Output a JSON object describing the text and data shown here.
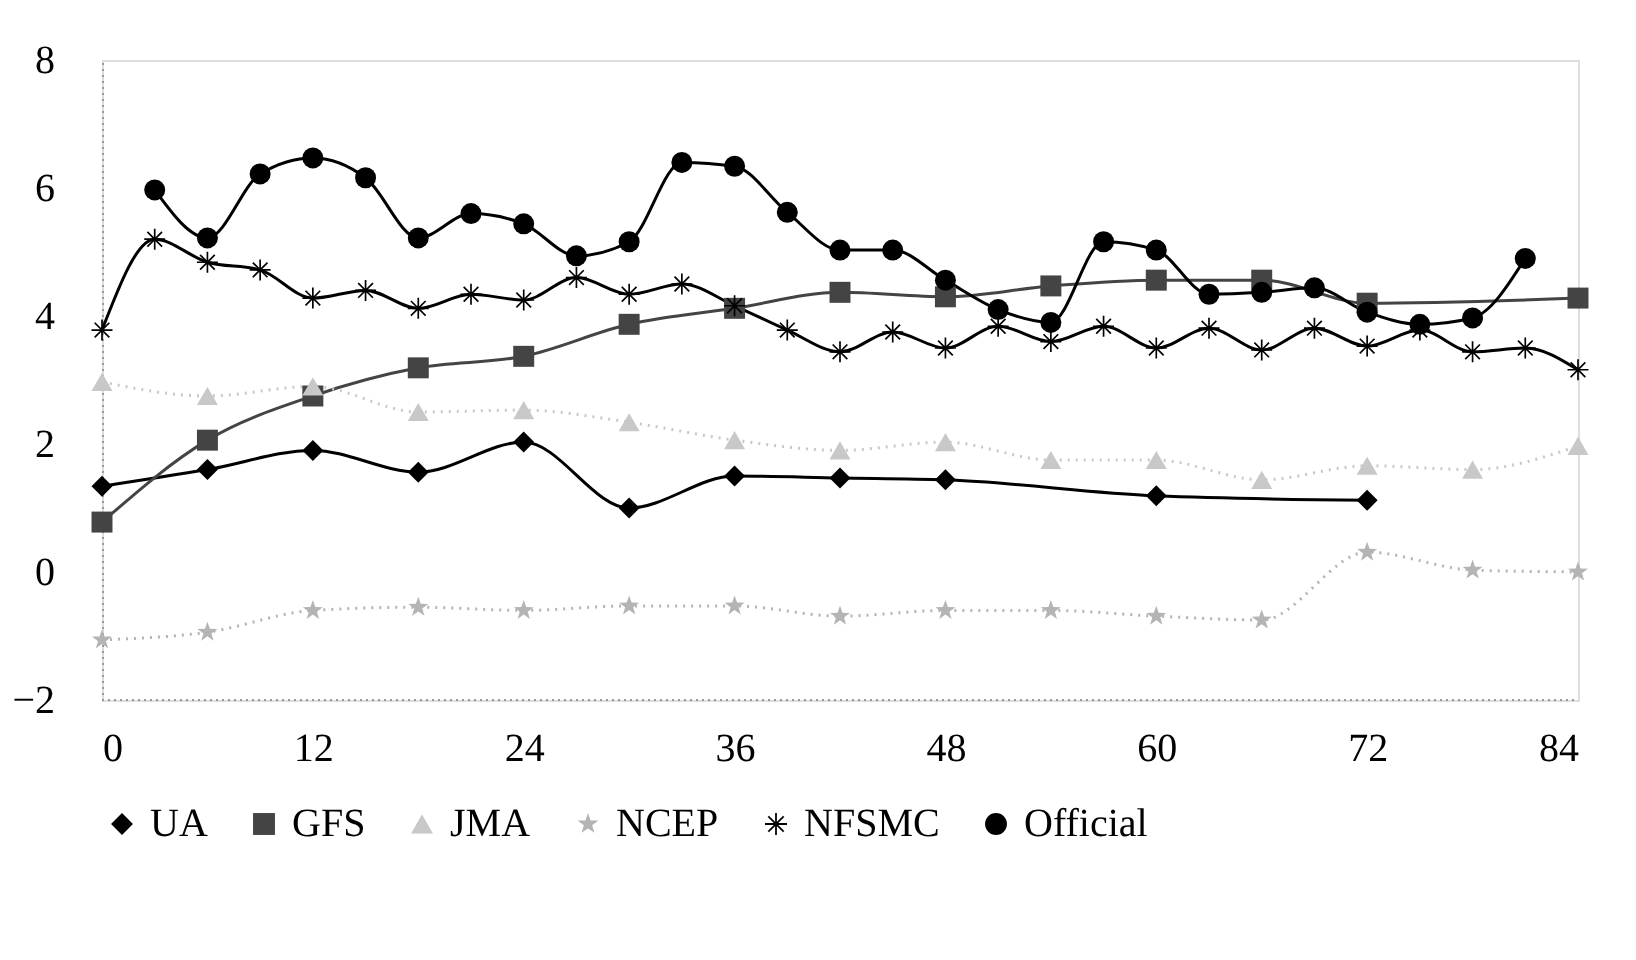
{
  "chart_data": {
    "type": "line",
    "xlim": [
      0,
      84
    ],
    "xticks": [
      0,
      12,
      24,
      36,
      48,
      60,
      72,
      84
    ],
    "ylim": [
      -2,
      8
    ],
    "yticks": [
      -2,
      0,
      2,
      4,
      6,
      8
    ],
    "grid": false,
    "legend": "bottom",
    "series": [
      {
        "name": "UA",
        "color": "#000000",
        "marker": "diamond",
        "line_style": "solid",
        "x": [
          0,
          6,
          12,
          18,
          24,
          30,
          36,
          42,
          48,
          60,
          72
        ],
        "values": [
          1.34,
          1.6,
          1.9,
          1.56,
          2.03,
          1.0,
          1.5,
          1.47,
          1.44,
          1.19,
          1.12
        ]
      },
      {
        "name": "GFS",
        "color": "#444444",
        "marker": "square",
        "line_style": "solid",
        "x": [
          0,
          6,
          12,
          18,
          24,
          30,
          36,
          42,
          48,
          54,
          60,
          66,
          72,
          84
        ],
        "values": [
          0.78,
          2.06,
          2.75,
          3.19,
          3.37,
          3.87,
          4.12,
          4.37,
          4.3,
          4.47,
          4.56,
          4.56,
          4.2,
          4.28
        ]
      },
      {
        "name": "JMA",
        "color": "#c8c8c8",
        "marker": "triangle",
        "line_style": "dotted",
        "x": [
          0,
          6,
          12,
          18,
          24,
          30,
          36,
          42,
          48,
          54,
          60,
          66,
          72,
          78,
          84
        ],
        "values": [
          2.97,
          2.75,
          2.9,
          2.5,
          2.53,
          2.34,
          2.06,
          1.9,
          2.03,
          1.75,
          1.75,
          1.44,
          1.66,
          1.6,
          1.97
        ]
      },
      {
        "name": "NCEP",
        "color": "#b4b4b4",
        "marker": "star",
        "line_style": "dotted",
        "x": [
          0,
          6,
          12,
          18,
          24,
          30,
          36,
          42,
          48,
          54,
          60,
          66,
          72,
          78,
          84
        ],
        "values": [
          -1.06,
          -0.94,
          -0.6,
          -0.55,
          -0.6,
          -0.53,
          -0.53,
          -0.69,
          -0.6,
          -0.6,
          -0.69,
          -0.75,
          0.31,
          0.03,
          0.0
        ]
      },
      {
        "name": "NFSMC",
        "color": "#000000",
        "marker": "cross",
        "line_style": "solid",
        "x": [
          0,
          3,
          6,
          9,
          12,
          15,
          18,
          21,
          24,
          27,
          30,
          33,
          36,
          39,
          42,
          45,
          48,
          51,
          54,
          57,
          60,
          63,
          66,
          69,
          72,
          75,
          78,
          81,
          84
        ],
        "values": [
          3.78,
          5.2,
          4.84,
          4.72,
          4.28,
          4.4,
          4.12,
          4.34,
          4.25,
          4.6,
          4.34,
          4.5,
          4.16,
          3.78,
          3.44,
          3.75,
          3.5,
          3.84,
          3.6,
          3.84,
          3.5,
          3.81,
          3.47,
          3.81,
          3.53,
          3.78,
          3.44,
          3.5,
          3.16
        ]
      },
      {
        "name": "Official",
        "color": "#000000",
        "marker": "circle",
        "line_style": "solid",
        "x": [
          3,
          6,
          9,
          12,
          15,
          18,
          21,
          24,
          27,
          30,
          33,
          36,
          39,
          42,
          45,
          48,
          51,
          54,
          57,
          60,
          63,
          66,
          69,
          72,
          75,
          78,
          81
        ],
        "values": [
          5.97,
          5.22,
          6.22,
          6.47,
          6.16,
          5.22,
          5.6,
          5.44,
          4.94,
          5.16,
          6.4,
          6.34,
          5.62,
          5.03,
          5.03,
          4.56,
          4.1,
          3.9,
          5.16,
          5.03,
          4.34,
          4.37,
          4.44,
          4.06,
          3.87,
          3.97,
          4.9
        ]
      }
    ]
  }
}
